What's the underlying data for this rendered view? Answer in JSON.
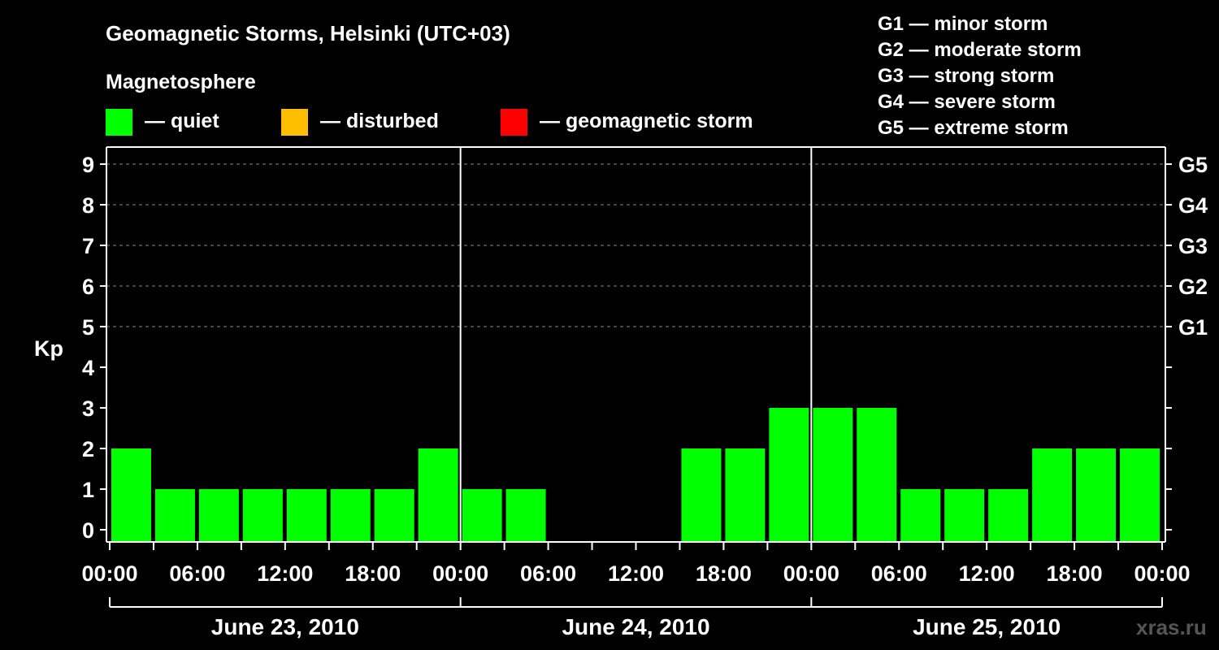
{
  "title": "Geomagnetic Storms, Helsinki (UTC+03)",
  "magnetosphere_label": "Magnetosphere",
  "legend": [
    {
      "label": "— quiet",
      "color": "#00ff00"
    },
    {
      "label": "— disturbed",
      "color": "#ffbf00"
    },
    {
      "label": "— geomagnetic storm",
      "color": "#ff0000"
    }
  ],
  "storm_scale": [
    "G1 — minor storm",
    "G2 — moderate storm",
    "G3 — strong storm",
    "G4 — severe storm",
    "G5 — extreme storm"
  ],
  "watermark": "xras.ru",
  "chart_data": {
    "type": "bar",
    "ylabel": "Kp",
    "ylim": [
      0,
      9
    ],
    "y_ticks": [
      "0",
      "1",
      "2",
      "3",
      "4",
      "5",
      "6",
      "7",
      "8",
      "9"
    ],
    "right_axis_ticks": [
      {
        "kp": 5,
        "label": "G1"
      },
      {
        "kp": 6,
        "label": "G2"
      },
      {
        "kp": 7,
        "label": "G3"
      },
      {
        "kp": 8,
        "label": "G4"
      },
      {
        "kp": 9,
        "label": "G5"
      }
    ],
    "x_tick_labels": [
      "00:00",
      "06:00",
      "12:00",
      "18:00",
      "00:00",
      "06:00",
      "12:00",
      "18:00",
      "00:00",
      "06:00",
      "12:00",
      "18:00",
      "00:00"
    ],
    "days": [
      "June 23, 2010",
      "June 24, 2010",
      "June 25, 2010"
    ],
    "interval_hours": 3,
    "grid": "horizontal dashed at Kp 5-9",
    "series": [
      {
        "values": [
          2,
          1,
          1,
          1,
          1,
          1,
          1,
          2,
          1,
          1,
          0,
          0,
          0,
          2,
          2,
          3,
          3,
          3,
          1,
          1,
          1,
          2,
          2,
          2
        ],
        "color": "#00ff00"
      }
    ]
  }
}
